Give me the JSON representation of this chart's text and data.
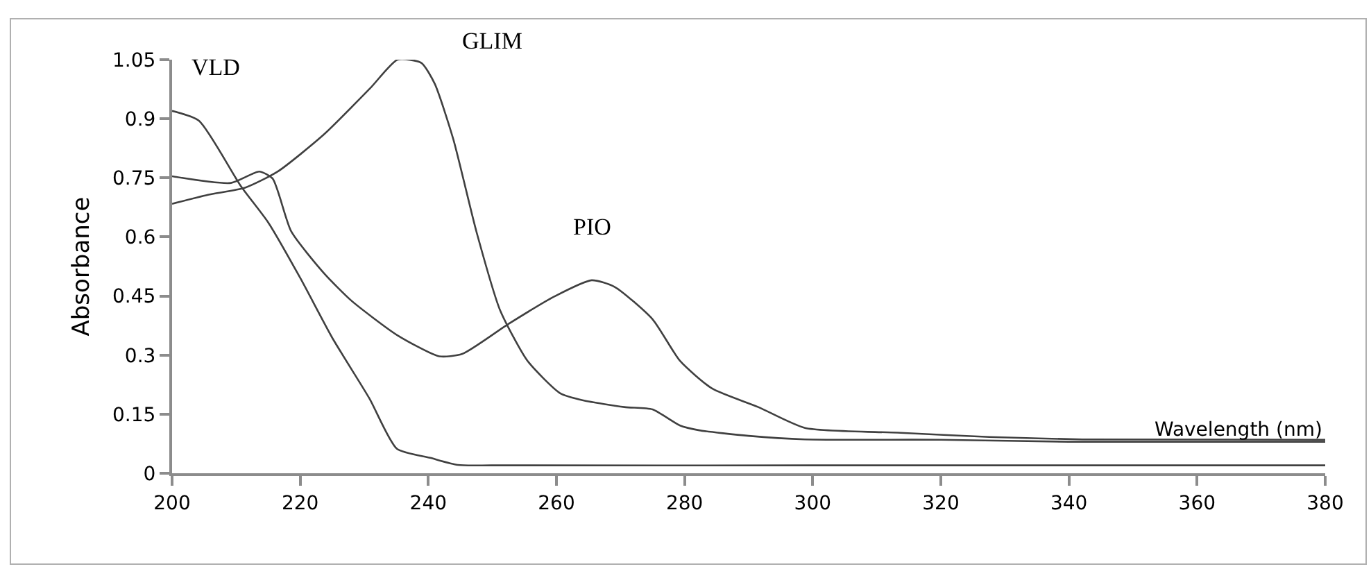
{
  "chart_data": {
    "type": "line",
    "xlabel": "Wavelength (nm)",
    "ylabel": "Absorbance",
    "xlim": [
      200,
      380
    ],
    "xticks": [
      200,
      220,
      240,
      260,
      280,
      300,
      320,
      340,
      360,
      380
    ],
    "ylim": [
      0,
      1.05
    ],
    "yticks": [
      0,
      0.15,
      0.3,
      0.45,
      0.6,
      0.75,
      0.9,
      1.05
    ],
    "grid": false,
    "legend": false,
    "marker": "none",
    "line_style": "solid",
    "series": [
      {
        "name": "VLD",
        "color": "#404040",
        "x": [
          200,
          204.2,
          210.7,
          215,
          220,
          225,
          230.8,
          235.1,
          240.3,
          244.6,
          250,
          300,
          380
        ],
        "values": [
          0.92,
          0.895,
          0.73,
          0.637,
          0.496,
          0.344,
          0.19,
          0.062,
          0.039,
          0.021,
          0.02,
          0.02,
          0.02
        ]
      },
      {
        "name": "GLIM",
        "color": "#404040",
        "x": [
          200,
          205.6,
          211.4,
          216.5,
          223.7,
          230.9,
          235.2,
          238.9,
          241,
          243.9,
          247.5,
          251.2,
          255.5,
          260.6,
          264.2,
          270.6,
          275,
          279.3,
          282.3,
          290,
          298.8,
          320,
          340,
          380
        ],
        "values": [
          0.684,
          0.707,
          0.725,
          0.766,
          0.86,
          0.977,
          1.05,
          1.042,
          0.989,
          0.848,
          0.614,
          0.414,
          0.285,
          0.203,
          0.185,
          0.168,
          0.162,
          0.121,
          0.109,
          0.095,
          0.086,
          0.085,
          0.08,
          0.08
        ]
      },
      {
        "name": "PIO",
        "color": "#404040",
        "x": [
          200,
          209.2,
          213.6,
          215.7,
          218.6,
          223.7,
          228,
          235.2,
          241.7,
          245.3,
          252.5,
          259.7,
          265.5,
          269.1,
          275,
          279.3,
          284.3,
          291.5,
          298.8,
          313.2,
          327.6,
          342.1,
          380
        ],
        "values": [
          0.754,
          0.737,
          0.766,
          0.748,
          0.614,
          0.508,
          0.438,
          0.35,
          0.297,
          0.303,
          0.379,
          0.449,
          0.49,
          0.473,
          0.391,
          0.285,
          0.215,
          0.168,
          0.115,
          0.103,
          0.092,
          0.086,
          0.085
        ]
      }
    ]
  }
}
